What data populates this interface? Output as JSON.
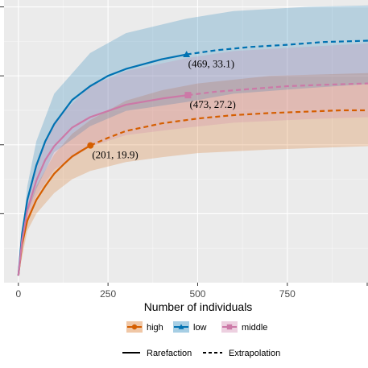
{
  "chart_data": {
    "type": "line",
    "title": "",
    "xlabel": "Number of individuals",
    "ylabel": "",
    "xlim": [
      -40,
      975
    ],
    "ylim": [
      0,
      41
    ],
    "x_ticks": [
      0,
      250,
      500,
      750
    ],
    "x_tick_labels": [
      "0",
      "250",
      "500",
      "750"
    ],
    "y_ticks": [
      10,
      20,
      30,
      40
    ],
    "grid": true,
    "legend_position": "bottom",
    "series": [
      {
        "name": "high",
        "color": "#D55E00",
        "marker": "circle",
        "observed": [
          201,
          19.9
        ],
        "rarefaction": [
          [
            0,
            1
          ],
          [
            10,
            5.5
          ],
          [
            25,
            9.0
          ],
          [
            50,
            12.0
          ],
          [
            75,
            14.0
          ],
          [
            100,
            15.8
          ],
          [
            125,
            17.1
          ],
          [
            150,
            18.3
          ],
          [
            175,
            19.1
          ],
          [
            201,
            19.9
          ]
        ],
        "extrapolation": [
          [
            201,
            19.9
          ],
          [
            250,
            21.0
          ],
          [
            300,
            22.0
          ],
          [
            400,
            23.1
          ],
          [
            500,
            23.8
          ],
          [
            600,
            24.3
          ],
          [
            700,
            24.6
          ],
          [
            800,
            24.8
          ],
          [
            900,
            25.0
          ],
          [
            975,
            25.0
          ]
        ],
        "ci_lower": [
          [
            0,
            1
          ],
          [
            25,
            7.5
          ],
          [
            50,
            10.0
          ],
          [
            100,
            13.0
          ],
          [
            150,
            15.0
          ],
          [
            201,
            16.2
          ],
          [
            300,
            17.5
          ],
          [
            400,
            18.2
          ],
          [
            500,
            18.8
          ],
          [
            700,
            19.3
          ],
          [
            975,
            19.8
          ]
        ],
        "ci_upper": [
          [
            0,
            1
          ],
          [
            25,
            10.5
          ],
          [
            50,
            14.0
          ],
          [
            100,
            18.6
          ],
          [
            150,
            21.6
          ],
          [
            201,
            23.6
          ],
          [
            300,
            26.4
          ],
          [
            400,
            27.9
          ],
          [
            500,
            28.9
          ],
          [
            700,
            30.0
          ],
          [
            975,
            30.4
          ]
        ]
      },
      {
        "name": "low",
        "color": "#0072B2",
        "marker": "triangle",
        "observed": [
          469,
          33.1
        ],
        "rarefaction": [
          [
            0,
            1
          ],
          [
            10,
            7.0
          ],
          [
            25,
            12.0
          ],
          [
            50,
            17.0
          ],
          [
            75,
            20.5
          ],
          [
            100,
            23.0
          ],
          [
            150,
            26.5
          ],
          [
            200,
            28.5
          ],
          [
            250,
            30.0
          ],
          [
            300,
            31.0
          ],
          [
            400,
            32.4
          ],
          [
            469,
            33.1
          ]
        ],
        "extrapolation": [
          [
            469,
            33.1
          ],
          [
            550,
            33.7
          ],
          [
            650,
            34.2
          ],
          [
            750,
            34.5
          ],
          [
            850,
            34.9
          ],
          [
            975,
            35.1
          ]
        ],
        "ci_lower": [
          [
            0,
            1
          ],
          [
            25,
            10.0
          ],
          [
            50,
            13.6
          ],
          [
            100,
            18.9
          ],
          [
            200,
            22.7
          ],
          [
            300,
            24.9
          ],
          [
            469,
            26.2
          ],
          [
            600,
            27.4
          ],
          [
            800,
            28.2
          ],
          [
            975,
            28.8
          ]
        ],
        "ci_upper": [
          [
            0,
            1
          ],
          [
            25,
            14.0
          ],
          [
            50,
            20.5
          ],
          [
            100,
            27.4
          ],
          [
            200,
            33.3
          ],
          [
            300,
            36.2
          ],
          [
            469,
            38.3
          ],
          [
            600,
            39.4
          ],
          [
            800,
            40.0
          ],
          [
            975,
            40.2
          ]
        ]
      },
      {
        "name": "middle",
        "color": "#CC79A7",
        "marker": "square",
        "observed": [
          473,
          27.2
        ],
        "rarefaction": [
          [
            0,
            1
          ],
          [
            10,
            6.0
          ],
          [
            25,
            10.5
          ],
          [
            50,
            14.8
          ],
          [
            75,
            17.8
          ],
          [
            100,
            19.8
          ],
          [
            150,
            22.5
          ],
          [
            200,
            24.0
          ],
          [
            300,
            25.8
          ],
          [
            400,
            26.7
          ],
          [
            473,
            27.2
          ]
        ],
        "extrapolation": [
          [
            473,
            27.2
          ],
          [
            550,
            27.7
          ],
          [
            650,
            28.1
          ],
          [
            750,
            28.5
          ],
          [
            850,
            28.7
          ],
          [
            975,
            28.9
          ]
        ],
        "ci_lower": [
          [
            0,
            1
          ],
          [
            25,
            9.0
          ],
          [
            50,
            12.6
          ],
          [
            100,
            16.4
          ],
          [
            200,
            19.7
          ],
          [
            300,
            21.4
          ],
          [
            473,
            22.5
          ],
          [
            600,
            23.2
          ],
          [
            800,
            23.7
          ],
          [
            975,
            24.0
          ]
        ],
        "ci_upper": [
          [
            0,
            1
          ],
          [
            25,
            12.0
          ],
          [
            50,
            17.2
          ],
          [
            100,
            23.4
          ],
          [
            200,
            28.5
          ],
          [
            300,
            30.7
          ],
          [
            473,
            32.6
          ],
          [
            600,
            33.6
          ],
          [
            800,
            34.2
          ],
          [
            975,
            34.7
          ]
        ]
      }
    ],
    "annotations": [
      "(469,  33.1)",
      "(473,  27.2)",
      "(201,  19.9)"
    ],
    "legend_entries": [
      "high",
      "low",
      "middle"
    ],
    "linetype_legend": [
      "Rarefaction",
      "Extrapolation"
    ]
  }
}
